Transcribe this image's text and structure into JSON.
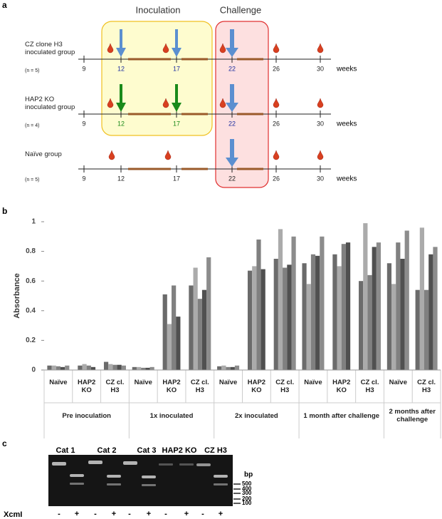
{
  "panel_a": {
    "label": "a",
    "phases": [
      "Inoculation",
      "Challenge"
    ],
    "rows": [
      {
        "group": "CZ clone H3 inoculated group",
        "n": "(n = 5)",
        "ticks": [
          "9",
          "12",
          "17",
          "22",
          "26",
          "30"
        ],
        "unit": "weeks"
      },
      {
        "group": "HAP2 KO inoculated group",
        "n": "(n = 4)",
        "ticks": [
          "9",
          "12",
          "17",
          "22",
          "26",
          "30"
        ],
        "unit": "weeks"
      },
      {
        "group": "Naïve group",
        "n": "(n = 5)",
        "ticks": [
          "9",
          "12",
          "17",
          "22",
          "26",
          "30"
        ],
        "unit": "weeks"
      }
    ]
  },
  "chart_data": {
    "label": "b",
    "type": "bar",
    "ylabel": "Absorbance",
    "ylim": [
      0,
      1
    ],
    "yticks": [
      0,
      0.2,
      0.4,
      0.6,
      0.8,
      1
    ],
    "colors": [
      "#6b6b6b",
      "#ababab",
      "#808080",
      "#505050",
      "#8c8c8c"
    ],
    "groups": [
      {
        "name": "Pre inoculation",
        "categories": [
          {
            "name": "Naïve",
            "values": [
              0.03,
              0.03,
              0.025,
              0.02,
              0.03
            ]
          },
          {
            "name": "HAP2 KO",
            "values": [
              0.03,
              0.04,
              0.03,
              0.02
            ]
          },
          {
            "name": "CZ cl. H3",
            "values": [
              0.055,
              0.04,
              0.035,
              0.035,
              0.03
            ]
          }
        ]
      },
      {
        "name": "1x inoculated",
        "categories": [
          {
            "name": "Naïve",
            "values": [
              0.02,
              0.02,
              0.015,
              0.015,
              0.02
            ]
          },
          {
            "name": "HAP2 KO",
            "values": [
              0.51,
              0.31,
              0.57,
              0.36
            ]
          },
          {
            "name": "CZ cl. H3",
            "values": [
              0.57,
              0.69,
              0.48,
              0.54,
              0.76
            ]
          }
        ]
      },
      {
        "name": "2x inoculated",
        "categories": [
          {
            "name": "Naïve",
            "values": [
              0.025,
              0.03,
              0.02,
              0.02,
              0.03
            ]
          },
          {
            "name": "HAP2 KO",
            "values": [
              0.67,
              0.7,
              0.88,
              0.68
            ]
          },
          {
            "name": "CZ cl. H3",
            "values": [
              0.75,
              0.95,
              0.69,
              0.71,
              0.9
            ]
          }
        ]
      },
      {
        "name": "1 month after challenge",
        "categories": [
          {
            "name": "Naïve",
            "values": [
              0.72,
              0.58,
              0.78,
              0.77,
              0.9
            ]
          },
          {
            "name": "HAP2 KO",
            "values": [
              0.78,
              0.7,
              0.85,
              0.86
            ]
          },
          {
            "name": "CZ cl. H3",
            "values": [
              0.6,
              0.99,
              0.64,
              0.83,
              0.86
            ]
          }
        ]
      },
      {
        "name": "2 months after challenge",
        "categories": [
          {
            "name": "Naïve",
            "values": [
              0.72,
              0.58,
              0.86,
              0.75,
              0.94
            ]
          },
          {
            "name": "CZ cl. H3",
            "values": [
              0.54,
              0.96,
              0.54,
              0.78,
              0.83
            ]
          }
        ]
      }
    ]
  },
  "panel_c": {
    "label": "c",
    "lanes": [
      "Cat 1",
      "Cat 2",
      "Cat 3",
      "HAP2 KO",
      "CZ H3"
    ],
    "unit": "bp",
    "ladder": [
      "500",
      "400",
      "300",
      "200",
      "100"
    ],
    "enzyme": "XcmI",
    "treatments": [
      "-",
      "+",
      "-",
      "+",
      "-",
      "+",
      "-",
      "+",
      "-",
      "+"
    ]
  }
}
